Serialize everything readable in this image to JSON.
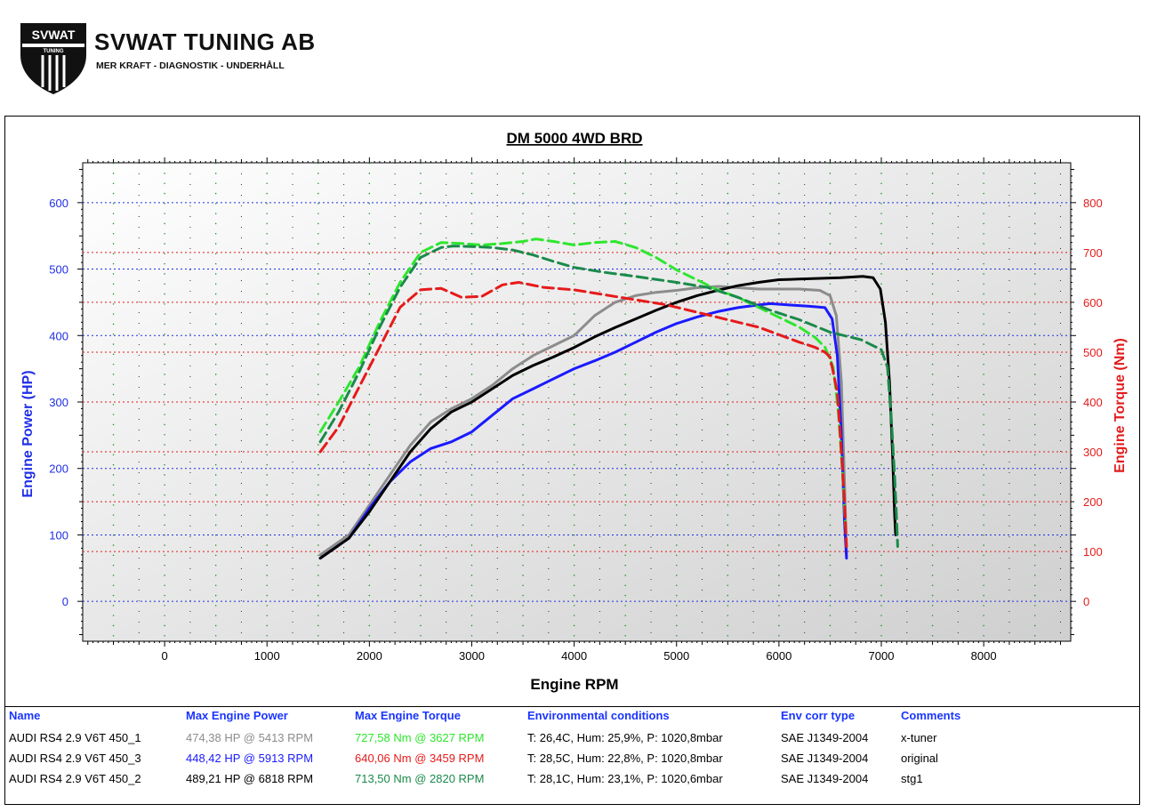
{
  "brand": {
    "badge_top": "SVWAT",
    "badge_bottom": "TUNING",
    "name": "SVWAT TUNING AB",
    "tagline": "MER KRAFT - DIAGNOSTIK - UNDERHÅLL"
  },
  "colors": {
    "power_axis": "#1f2ee6",
    "torque_axis": "#e21b1b",
    "grid_blue": "#1f2ee6",
    "grid_red": "#e21b1b",
    "grid_dots": "#1b8a1b"
  },
  "chart_data": {
    "type": "line",
    "title": "DM 5000 4WD BRD",
    "xlabel": "Engine RPM",
    "ylabel_left": "Engine Power (HP)",
    "ylabel_right": "Engine Torque (Nm)",
    "xlim": [
      -800,
      8850
    ],
    "ylim_left": [
      -60,
      660
    ],
    "ylim_right": [
      -80,
      880
    ],
    "xticks": [
      0,
      1000,
      2000,
      3000,
      4000,
      5000,
      6000,
      7000,
      8000
    ],
    "yticks_left": [
      0,
      100,
      200,
      300,
      400,
      500,
      600
    ],
    "yticks_right": [
      0,
      100,
      200,
      300,
      400,
      500,
      600,
      700,
      800
    ],
    "grid": true,
    "series": [
      {
        "name": "AUDI RS4 2.9 V6T 450_1",
        "axis": "power",
        "color": "#8c8c8c",
        "dash": false,
        "points": [
          [
            1520,
            70
          ],
          [
            1800,
            100
          ],
          [
            2000,
            145
          ],
          [
            2200,
            190
          ],
          [
            2400,
            235
          ],
          [
            2600,
            270
          ],
          [
            2800,
            290
          ],
          [
            3000,
            305
          ],
          [
            3200,
            325
          ],
          [
            3400,
            350
          ],
          [
            3600,
            370
          ],
          [
            3800,
            385
          ],
          [
            4000,
            400
          ],
          [
            4200,
            430
          ],
          [
            4400,
            450
          ],
          [
            4600,
            460
          ],
          [
            4800,
            465
          ],
          [
            5000,
            468
          ],
          [
            5200,
            472
          ],
          [
            5413,
            474
          ],
          [
            5600,
            472
          ],
          [
            5800,
            470
          ],
          [
            6000,
            470
          ],
          [
            6200,
            470
          ],
          [
            6400,
            468
          ],
          [
            6500,
            460
          ],
          [
            6560,
            430
          ],
          [
            6610,
            330
          ],
          [
            6640,
            180
          ],
          [
            6660,
            70
          ]
        ]
      },
      {
        "name": "AUDI RS4 2.9 V6T 450_3",
        "axis": "power",
        "color": "#1a1aff",
        "dash": false,
        "points": [
          [
            1520,
            65
          ],
          [
            1800,
            95
          ],
          [
            2000,
            140
          ],
          [
            2200,
            180
          ],
          [
            2400,
            210
          ],
          [
            2600,
            230
          ],
          [
            2800,
            240
          ],
          [
            3000,
            255
          ],
          [
            3200,
            280
          ],
          [
            3400,
            305
          ],
          [
            3600,
            320
          ],
          [
            3800,
            335
          ],
          [
            4000,
            350
          ],
          [
            4200,
            362
          ],
          [
            4400,
            375
          ],
          [
            4600,
            390
          ],
          [
            4800,
            405
          ],
          [
            5000,
            418
          ],
          [
            5200,
            428
          ],
          [
            5400,
            436
          ],
          [
            5600,
            442
          ],
          [
            5800,
            446
          ],
          [
            5913,
            448
          ],
          [
            6100,
            446
          ],
          [
            6300,
            444
          ],
          [
            6450,
            442
          ],
          [
            6520,
            425
          ],
          [
            6570,
            370
          ],
          [
            6610,
            250
          ],
          [
            6640,
            120
          ],
          [
            6660,
            65
          ]
        ]
      },
      {
        "name": "AUDI RS4 2.9 V6T 450_2",
        "axis": "power",
        "color": "#000000",
        "dash": false,
        "points": [
          [
            1520,
            65
          ],
          [
            1800,
            95
          ],
          [
            2000,
            135
          ],
          [
            2200,
            180
          ],
          [
            2400,
            225
          ],
          [
            2600,
            260
          ],
          [
            2800,
            285
          ],
          [
            3000,
            300
          ],
          [
            3200,
            320
          ],
          [
            3400,
            340
          ],
          [
            3600,
            355
          ],
          [
            3800,
            368
          ],
          [
            4000,
            382
          ],
          [
            4200,
            398
          ],
          [
            4400,
            412
          ],
          [
            4600,
            425
          ],
          [
            4800,
            438
          ],
          [
            5000,
            450
          ],
          [
            5200,
            460
          ],
          [
            5400,
            468
          ],
          [
            5600,
            475
          ],
          [
            5800,
            480
          ],
          [
            6000,
            484
          ],
          [
            6200,
            485
          ],
          [
            6400,
            486
          ],
          [
            6600,
            487
          ],
          [
            6818,
            489
          ],
          [
            6920,
            487
          ],
          [
            6990,
            470
          ],
          [
            7040,
            420
          ],
          [
            7080,
            330
          ],
          [
            7110,
            220
          ],
          [
            7130,
            130
          ],
          [
            7140,
            100
          ]
        ]
      },
      {
        "name": "AUDI RS4 2.9 V6T 450_1",
        "axis": "torque",
        "color": "#2ee62e",
        "dash": true,
        "points": [
          [
            1520,
            340
          ],
          [
            1700,
            400
          ],
          [
            1900,
            470
          ],
          [
            2100,
            560
          ],
          [
            2300,
            640
          ],
          [
            2500,
            700
          ],
          [
            2700,
            720
          ],
          [
            2900,
            718
          ],
          [
            3100,
            715
          ],
          [
            3300,
            718
          ],
          [
            3500,
            722
          ],
          [
            3627,
            727
          ],
          [
            3800,
            722
          ],
          [
            4000,
            715
          ],
          [
            4200,
            720
          ],
          [
            4400,
            722
          ],
          [
            4600,
            710
          ],
          [
            4800,
            690
          ],
          [
            5000,
            665
          ],
          [
            5200,
            645
          ],
          [
            5400,
            625
          ],
          [
            5600,
            610
          ],
          [
            5800,
            590
          ],
          [
            6000,
            570
          ],
          [
            6200,
            550
          ],
          [
            6350,
            530
          ],
          [
            6450,
            510
          ],
          [
            6530,
            470
          ],
          [
            6580,
            380
          ],
          [
            6620,
            260
          ],
          [
            6650,
            150
          ]
        ]
      },
      {
        "name": "AUDI RS4 2.9 V6T 450_3",
        "axis": "torque",
        "color": "#e61a1a",
        "dash": true,
        "points": [
          [
            1520,
            300
          ],
          [
            1700,
            350
          ],
          [
            1900,
            430
          ],
          [
            2100,
            510
          ],
          [
            2300,
            590
          ],
          [
            2500,
            625
          ],
          [
            2700,
            628
          ],
          [
            2900,
            610
          ],
          [
            3100,
            612
          ],
          [
            3300,
            635
          ],
          [
            3459,
            640
          ],
          [
            3700,
            630
          ],
          [
            4000,
            625
          ],
          [
            4300,
            615
          ],
          [
            4600,
            605
          ],
          [
            4900,
            595
          ],
          [
            5200,
            580
          ],
          [
            5500,
            565
          ],
          [
            5800,
            550
          ],
          [
            6000,
            535
          ],
          [
            6200,
            520
          ],
          [
            6350,
            510
          ],
          [
            6450,
            500
          ],
          [
            6500,
            490
          ],
          [
            6570,
            420
          ],
          [
            6610,
            300
          ],
          [
            6640,
            200
          ],
          [
            6660,
            110
          ]
        ]
      },
      {
        "name": "AUDI RS4 2.9 V6T 450_2",
        "axis": "torque",
        "color": "#1a8a4a",
        "dash": true,
        "points": [
          [
            1520,
            320
          ],
          [
            1700,
            380
          ],
          [
            1900,
            460
          ],
          [
            2100,
            550
          ],
          [
            2300,
            630
          ],
          [
            2500,
            690
          ],
          [
            2700,
            710
          ],
          [
            2820,
            713
          ],
          [
            3000,
            712
          ],
          [
            3200,
            710
          ],
          [
            3400,
            705
          ],
          [
            3600,
            695
          ],
          [
            3800,
            682
          ],
          [
            4000,
            670
          ],
          [
            4300,
            660
          ],
          [
            4600,
            652
          ],
          [
            5000,
            640
          ],
          [
            5300,
            630
          ],
          [
            5600,
            610
          ],
          [
            5900,
            585
          ],
          [
            6200,
            565
          ],
          [
            6500,
            540
          ],
          [
            6800,
            525
          ],
          [
            7000,
            505
          ],
          [
            7060,
            470
          ],
          [
            7100,
            360
          ],
          [
            7130,
            250
          ],
          [
            7150,
            160
          ],
          [
            7160,
            110
          ]
        ]
      }
    ]
  },
  "table": {
    "headers": {
      "name": "Name",
      "power": "Max Engine Power",
      "torque": "Max Engine Torque",
      "env": "Environmental conditions",
      "corr": "Env corr type",
      "comments": "Comments"
    },
    "rows": [
      {
        "name": "AUDI RS4 2.9 V6T 450_1",
        "power": "474,38 HP @ 5413 RPM",
        "torque": "727,58 Nm @ 3627 RPM",
        "env": "T: 26,4C, Hum: 25,9%, P: 1020,8mbar",
        "corr": "SAE J1349-2004",
        "comment": "x-tuner",
        "power_color": "#8c8c8c",
        "torque_color": "#2ee62e"
      },
      {
        "name": "AUDI RS4 2.9 V6T 450_3",
        "power": "448,42 HP @ 5913 RPM",
        "torque": "640,06 Nm @ 3459 RPM",
        "env": "T: 28,5C, Hum: 22,8%, P: 1020,8mbar",
        "corr": "SAE J1349-2004",
        "comment": "original",
        "power_color": "#1a1aff",
        "torque_color": "#e61a1a"
      },
      {
        "name": "AUDI RS4 2.9 V6T 450_2",
        "power": "489,21 HP @ 6818 RPM",
        "torque": "713,50 Nm @ 2820 RPM",
        "env": "T: 28,1C, Hum: 23,1%, P: 1020,6mbar",
        "corr": "SAE J1349-2004",
        "comment": "stg1",
        "power_color": "#000000",
        "torque_color": "#1a8a4a"
      }
    ]
  }
}
